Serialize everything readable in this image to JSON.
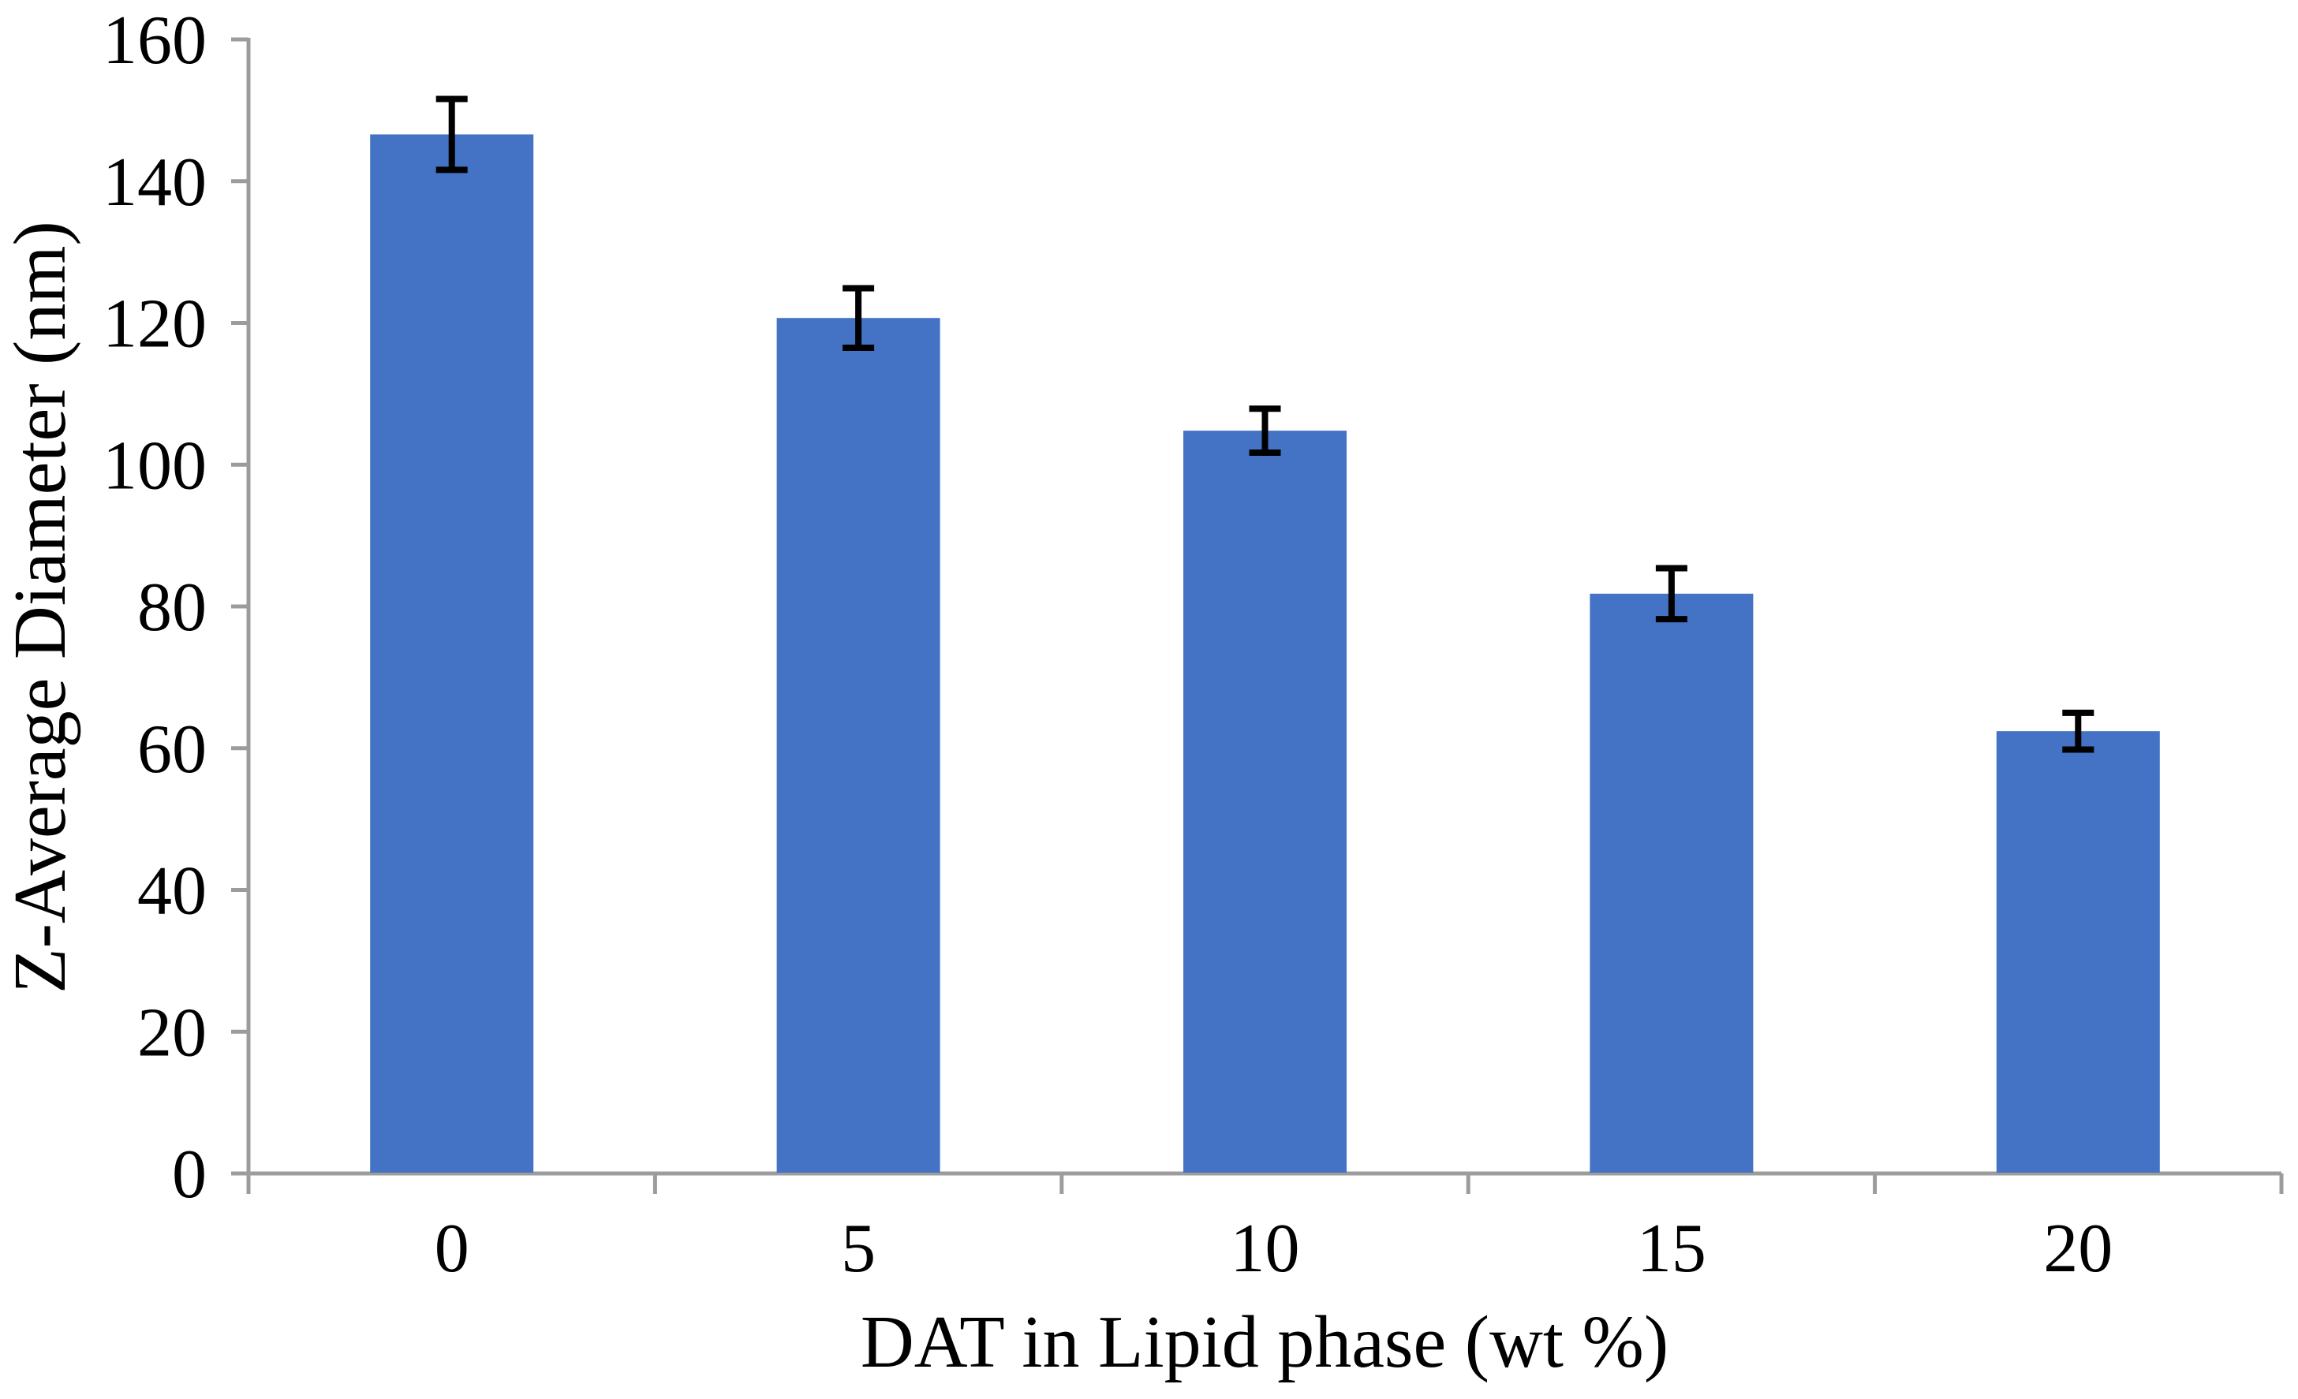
{
  "page": {
    "background": "#ffffff"
  },
  "chart_data": {
    "type": "bar",
    "title": "",
    "categories": [
      "0",
      "5",
      "10",
      "15",
      "20"
    ],
    "values": [
      146.6,
      120.7,
      104.8,
      81.8,
      62.4
    ],
    "error_bars": [
      5.0,
      4.2,
      3.1,
      3.6,
      2.6
    ],
    "xlabel": "DAT in Lipid phase (wt %)",
    "ylabel": "Z-Average Diameter (nm)",
    "ylim": [
      0,
      160
    ],
    "ytick_step": 20,
    "ytick_labels": [
      "0",
      "20",
      "40",
      "60",
      "80",
      "100",
      "120",
      "140",
      "160"
    ],
    "grid": false,
    "legend": "none",
    "bar_color": "#4472C4",
    "axis_color": "#9C9C9C",
    "error_bar_color": "#000000",
    "text_color": "#000000"
  }
}
